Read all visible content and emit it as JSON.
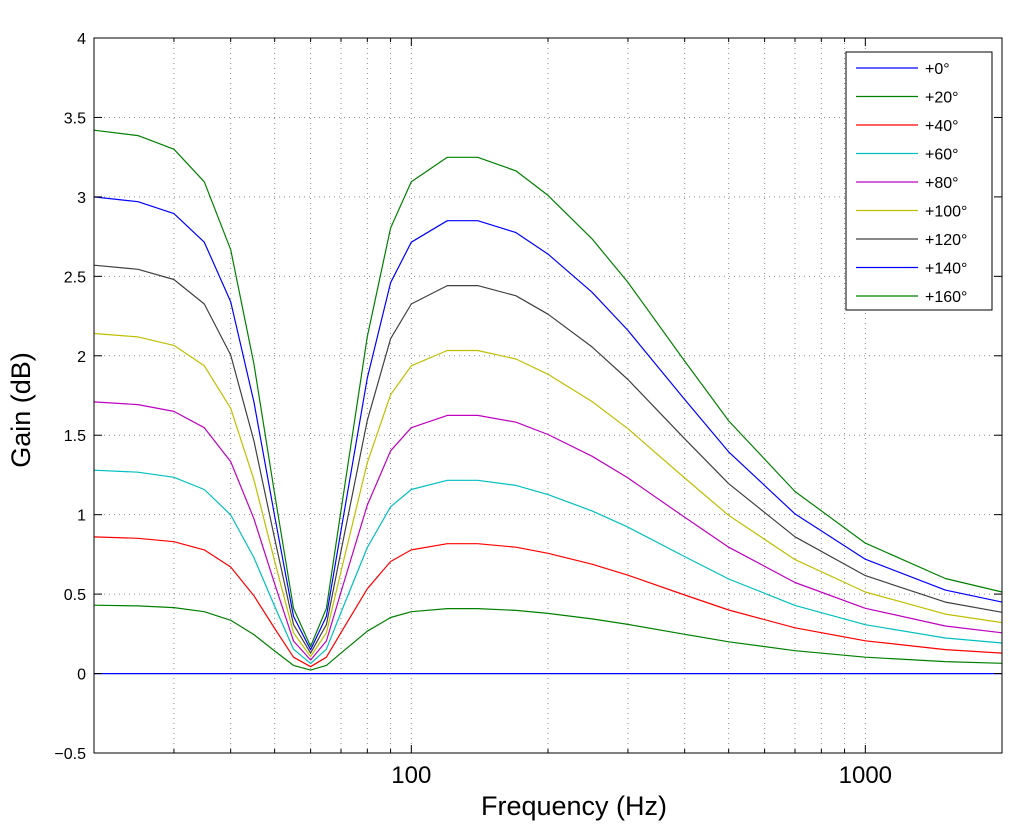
{
  "chart_data": {
    "type": "line",
    "title": "",
    "xlabel": "Frequency (Hz)",
    "ylabel": "Gain (dB)",
    "xscale": "log",
    "xlim": [
      20,
      2000
    ],
    "ylim": [
      -0.5,
      4
    ],
    "grid": true,
    "legend_position": "top-right",
    "x_tick_labels": [
      "100",
      "1000"
    ],
    "x_tick_values": [
      100,
      1000
    ],
    "y_tick_labels": [
      "−0.5",
      "0",
      "0.5",
      "1",
      "1.5",
      "2",
      "2.5",
      "3",
      "3.5",
      "4"
    ],
    "y_tick_values": [
      -0.5,
      0,
      0.5,
      1,
      1.5,
      2,
      2.5,
      3,
      3.5,
      4
    ],
    "x": [
      20,
      25,
      30,
      35,
      40,
      45,
      50,
      55,
      60,
      65,
      70,
      80,
      90,
      100,
      120,
      140,
      170,
      200,
      250,
      300,
      400,
      500,
      700,
      1000,
      1500,
      2000
    ],
    "shape": [
      1.0,
      0.99,
      0.965,
      0.905,
      0.78,
      0.57,
      0.33,
      0.12,
      0.05,
      0.12,
      0.3,
      0.62,
      0.82,
      0.905,
      0.95,
      0.95,
      0.925,
      0.88,
      0.8,
      0.72,
      0.575,
      0.465,
      0.335,
      0.24,
      0.175,
      0.15
    ],
    "series": [
      {
        "name": "+0°",
        "color": "#0000ff",
        "peak": 0.0
      },
      {
        "name": "+20°",
        "color": "#008000",
        "peak": 0.43
      },
      {
        "name": "+40°",
        "color": "#ff0000",
        "peak": 0.86
      },
      {
        "name": "+60°",
        "color": "#00bfbf",
        "peak": 1.28
      },
      {
        "name": "+80°",
        "color": "#bf00bf",
        "peak": 1.71
      },
      {
        "name": "+100°",
        "color": "#bfbf00",
        "peak": 2.14
      },
      {
        "name": "+120°",
        "color": "#404040",
        "peak": 2.57
      },
      {
        "name": "+140°",
        "color": "#0000ff",
        "peak": 3.0
      },
      {
        "name": "+160°",
        "color": "#008000",
        "peak": 3.42
      }
    ]
  }
}
